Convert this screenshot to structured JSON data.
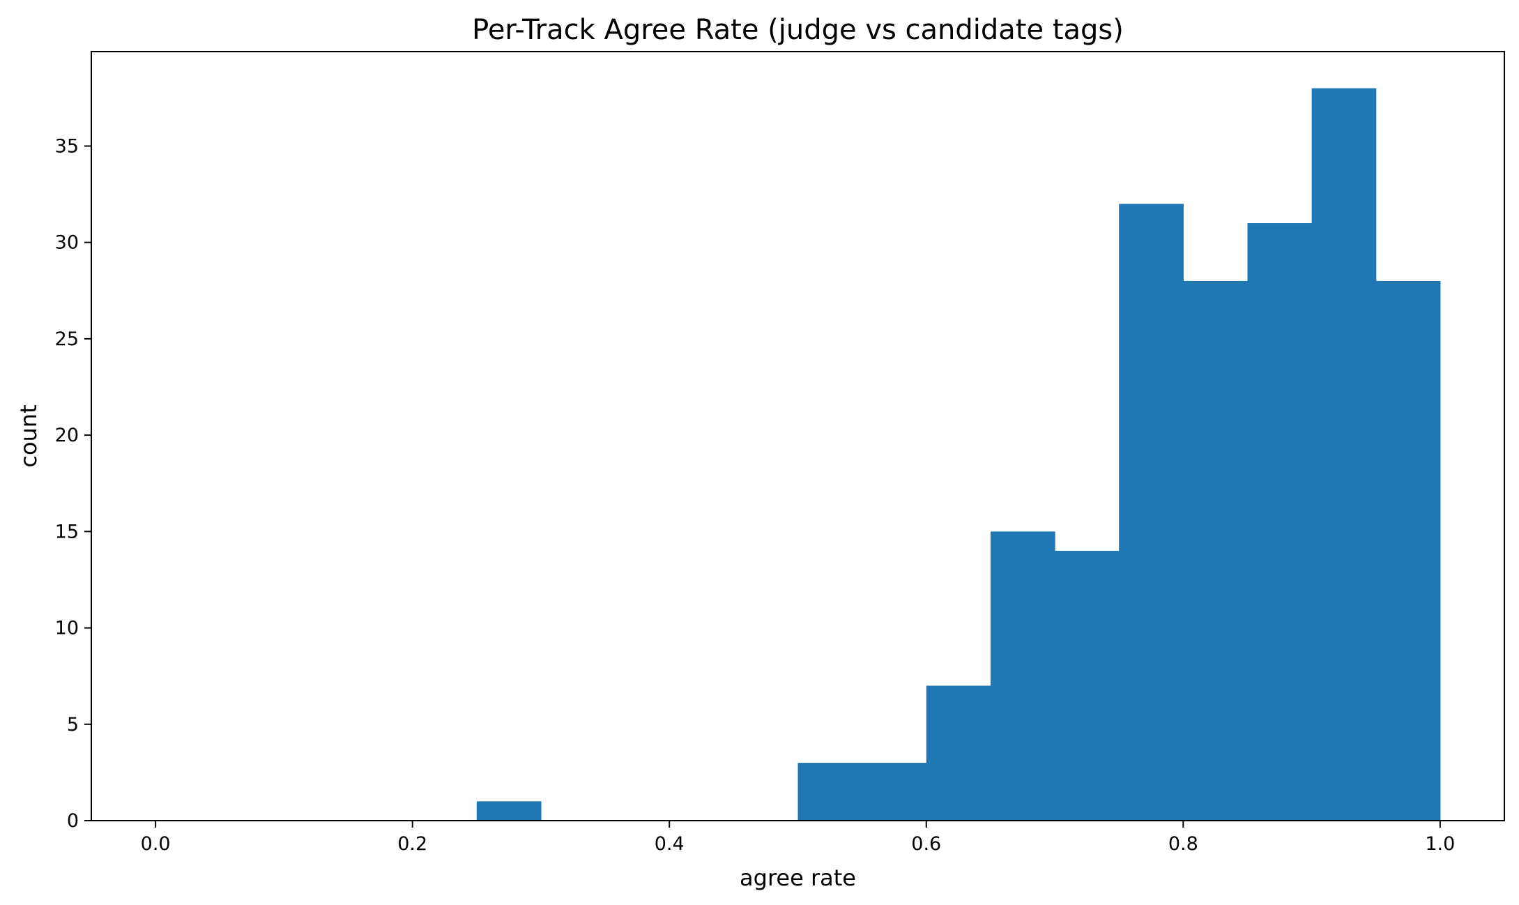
{
  "chart_data": {
    "type": "bar",
    "title": "Per-Track Agree Rate (judge vs candidate tags)",
    "xlabel": "agree rate",
    "ylabel": "count",
    "xlim": [
      -0.05,
      1.05
    ],
    "ylim": [
      0,
      39.9
    ],
    "x_ticks": [
      0.0,
      0.2,
      0.4,
      0.6,
      0.8,
      1.0
    ],
    "x_tick_labels": [
      "0.0",
      "0.2",
      "0.4",
      "0.6",
      "0.8",
      "1.0"
    ],
    "y_ticks": [
      0,
      5,
      10,
      15,
      20,
      25,
      30,
      35
    ],
    "y_tick_labels": [
      "0",
      "5",
      "10",
      "15",
      "20",
      "25",
      "30",
      "35"
    ],
    "bin_edges": [
      0.0,
      0.05,
      0.1,
      0.15,
      0.2,
      0.25,
      0.3,
      0.35,
      0.4,
      0.45,
      0.5,
      0.55,
      0.6,
      0.65,
      0.7,
      0.75,
      0.8,
      0.85,
      0.9,
      0.95,
      1.0
    ],
    "counts": [
      0,
      0,
      0,
      0,
      0,
      1,
      0,
      0,
      0,
      0,
      3,
      3,
      7,
      15,
      14,
      32,
      28,
      31,
      38,
      28
    ],
    "bar_color": "#1f77b4",
    "grid": false,
    "legend": "none"
  }
}
